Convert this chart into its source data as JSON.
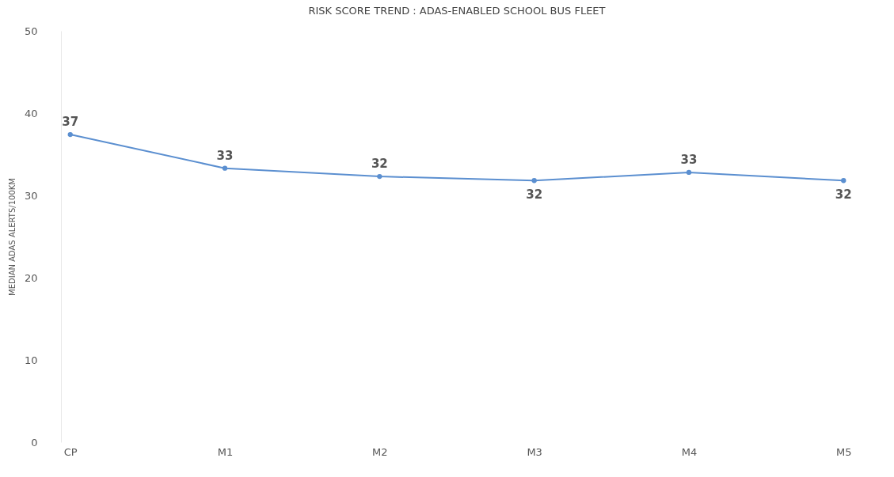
{
  "chart_data": {
    "type": "line",
    "title": "RISK SCORE TREND : ADAS-ENABLED SCHOOL BUS FLEET",
    "ylabel": "MEDIAN ADAS ALERTS/100KM",
    "categories": [
      "CP",
      "M1",
      "M2",
      "M3",
      "M4",
      "M5"
    ],
    "series": [
      {
        "color": "#5b8fd0",
        "values": [
          37.4,
          33.3,
          32.3,
          31.8,
          32.8,
          31.8
        ],
        "value_labels": [
          "37",
          "33",
          "32",
          "32",
          "33",
          "32"
        ]
      }
    ],
    "ylim": [
      0,
      50
    ],
    "yticks": [
      0,
      10,
      20,
      30,
      40,
      50
    ],
    "grid": false,
    "legend": false,
    "marker": "circle",
    "line_style": "solid"
  }
}
